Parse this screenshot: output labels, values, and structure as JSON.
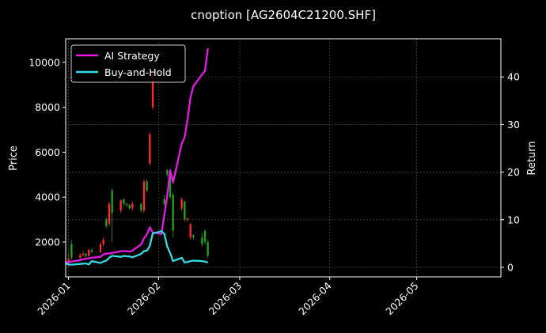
{
  "chart_data": {
    "type": "candlestick+line",
    "title": "cnoption [AG2604C21200.SHF]",
    "xlabel": "",
    "ylabel_left": "Price",
    "ylabel_right": "Return",
    "x_axis": {
      "range": [
        "2025-12-31",
        "2026-05-30"
      ],
      "ticks": [
        "2026-01",
        "2026-02",
        "2026-03",
        "2026-04",
        "2026-05"
      ]
    },
    "y_left": {
      "range": [
        450,
        11050
      ],
      "ticks": [
        2000,
        4000,
        6000,
        8000,
        10000
      ]
    },
    "y_right": {
      "range": [
        -2,
        48
      ],
      "ticks": [
        0,
        10,
        20,
        30,
        40
      ]
    },
    "grid": true,
    "legend_position": "top-left",
    "colors": {
      "background": "#000000",
      "up_candle": "#ff2a2a",
      "down_candle": "#1ea01e",
      "ai_strategy": "#e619e6",
      "buy_and_hold": "#33dde6",
      "grid": "#555555"
    },
    "candles": [
      {
        "date": "2026-01-01",
        "open": 1100,
        "high": 1500,
        "low": 900,
        "close": 1250
      },
      {
        "date": "2026-01-02",
        "open": 1900,
        "high": 2100,
        "low": 1200,
        "close": 1300
      },
      {
        "date": "2026-01-05",
        "open": 1300,
        "high": 1500,
        "low": 1150,
        "close": 1420
      },
      {
        "date": "2026-01-06",
        "open": 1420,
        "high": 1600,
        "low": 1350,
        "close": 1480
      },
      {
        "date": "2026-01-07",
        "open": 1480,
        "high": 1520,
        "low": 1300,
        "close": 1380
      },
      {
        "date": "2026-01-08",
        "open": 1380,
        "high": 1700,
        "low": 1350,
        "close": 1650
      },
      {
        "date": "2026-01-09",
        "open": 1650,
        "high": 1750,
        "low": 1500,
        "close": 1550
      },
      {
        "date": "2026-01-12",
        "open": 1550,
        "high": 2000,
        "low": 1500,
        "close": 1900
      },
      {
        "date": "2026-01-13",
        "open": 1900,
        "high": 2200,
        "low": 1800,
        "close": 2100
      },
      {
        "date": "2026-01-14",
        "open": 3000,
        "high": 3100,
        "low": 2600,
        "close": 2700
      },
      {
        "date": "2026-01-15",
        "open": 2800,
        "high": 3800,
        "low": 2700,
        "close": 3700
      },
      {
        "date": "2026-01-16",
        "open": 4300,
        "high": 4400,
        "low": 2000,
        "close": 3300
      },
      {
        "date": "2026-01-19",
        "open": 3400,
        "high": 3900,
        "low": 3300,
        "close": 3850
      },
      {
        "date": "2026-01-20",
        "open": 3900,
        "high": 3950,
        "low": 3600,
        "close": 3700
      },
      {
        "date": "2026-01-21",
        "open": 3700,
        "high": 3750,
        "low": 3550,
        "close": 3650
      },
      {
        "date": "2026-01-22",
        "open": 3650,
        "high": 3700,
        "low": 3450,
        "close": 3500
      },
      {
        "date": "2026-01-23",
        "open": 3500,
        "high": 3800,
        "low": 3400,
        "close": 3700
      },
      {
        "date": "2026-01-26",
        "open": 3700,
        "high": 3750,
        "low": 3300,
        "close": 3400
      },
      {
        "date": "2026-01-27",
        "open": 3400,
        "high": 4800,
        "low": 3300,
        "close": 4700
      },
      {
        "date": "2026-01-28",
        "open": 4700,
        "high": 4800,
        "low": 4200,
        "close": 4300
      },
      {
        "date": "2026-01-29",
        "open": 5500,
        "high": 6900,
        "low": 5400,
        "close": 6800
      },
      {
        "date": "2026-01-30",
        "open": 8000,
        "high": 9800,
        "low": 7900,
        "close": 9600
      },
      {
        "date": "2026-02-03",
        "open": 3900,
        "high": 4100,
        "low": 3600,
        "close": 3700
      },
      {
        "date": "2026-02-04",
        "open": 5200,
        "high": 5250,
        "low": 4900,
        "close": 5000
      },
      {
        "date": "2026-02-05",
        "open": 5000,
        "high": 5100,
        "low": 3900,
        "close": 4000
      },
      {
        "date": "2026-02-06",
        "open": 4100,
        "high": 4200,
        "low": 2200,
        "close": 2500
      },
      {
        "date": "2026-02-09",
        "open": 3500,
        "high": 4000,
        "low": 3400,
        "close": 3900
      },
      {
        "date": "2026-02-10",
        "open": 3800,
        "high": 3850,
        "low": 2900,
        "close": 3000
      },
      {
        "date": "2026-02-11",
        "open": 3000,
        "high": 3100,
        "low": 2900,
        "close": 3050
      },
      {
        "date": "2026-02-12",
        "open": 2200,
        "high": 2850,
        "low": 2100,
        "close": 2800
      },
      {
        "date": "2026-02-13",
        "open": 2300,
        "high": 2350,
        "low": 2100,
        "close": 2200
      },
      {
        "date": "2026-02-16",
        "open": 2200,
        "high": 2400,
        "low": 1800,
        "close": 1900
      },
      {
        "date": "2026-02-17",
        "open": 2500,
        "high": 2550,
        "low": 1900,
        "close": 2000
      },
      {
        "date": "2026-02-18",
        "open": 2000,
        "high": 2100,
        "low": 1300,
        "close": 1400
      }
    ],
    "series": [
      {
        "name": "AI Strategy",
        "axis": "right",
        "x": [
          "2025-12-31",
          "2026-01-01",
          "2026-01-02",
          "2026-01-05",
          "2026-01-06",
          "2026-01-07",
          "2026-01-08",
          "2026-01-09",
          "2026-01-12",
          "2026-01-13",
          "2026-01-14",
          "2026-01-15",
          "2026-01-16",
          "2026-01-19",
          "2026-01-20",
          "2026-01-21",
          "2026-01-22",
          "2026-01-23",
          "2026-01-26",
          "2026-01-27",
          "2026-01-28",
          "2026-01-29",
          "2026-01-30",
          "2026-02-02",
          "2026-02-03",
          "2026-02-04",
          "2026-02-05",
          "2026-02-06",
          "2026-02-09",
          "2026-02-10",
          "2026-02-11",
          "2026-02-12",
          "2026-02-13",
          "2026-02-16",
          "2026-02-17",
          "2026-02-18"
        ],
        "values": [
          1.0,
          1.1,
          1.2,
          1.5,
          1.7,
          1.8,
          1.9,
          2.0,
          2.2,
          2.7,
          2.9,
          2.9,
          3.0,
          3.4,
          3.4,
          3.4,
          3.3,
          3.5,
          4.8,
          6.1,
          6.9,
          8.4,
          7.3,
          7.0,
          11.0,
          15.0,
          20.4,
          17.8,
          26.0,
          27.3,
          31.0,
          35.7,
          38.0,
          40.5,
          41.2,
          46.0
        ]
      },
      {
        "name": "Buy-and-Hold",
        "axis": "right",
        "x": [
          "2025-12-31",
          "2026-01-01",
          "2026-01-02",
          "2026-01-05",
          "2026-01-06",
          "2026-01-07",
          "2026-01-08",
          "2026-01-09",
          "2026-01-12",
          "2026-01-13",
          "2026-01-14",
          "2026-01-15",
          "2026-01-16",
          "2026-01-19",
          "2026-01-20",
          "2026-01-21",
          "2026-01-22",
          "2026-01-23",
          "2026-01-26",
          "2026-01-27",
          "2026-01-28",
          "2026-01-29",
          "2026-01-30",
          "2026-02-02",
          "2026-02-03",
          "2026-02-04",
          "2026-02-05",
          "2026-02-06",
          "2026-02-09",
          "2026-02-10",
          "2026-02-11",
          "2026-02-12",
          "2026-02-13",
          "2026-02-16",
          "2026-02-17",
          "2026-02-18"
        ],
        "values": [
          0.8,
          0.6,
          0.55,
          0.7,
          0.75,
          0.8,
          0.6,
          1.3,
          0.9,
          1.2,
          1.4,
          2.0,
          2.4,
          2.2,
          2.4,
          2.3,
          2.3,
          2.1,
          2.8,
          3.4,
          3.5,
          4.5,
          7.1,
          7.6,
          7.0,
          4.4,
          3.0,
          1.3,
          2.0,
          1.0,
          1.1,
          1.3,
          1.4,
          1.3,
          1.2,
          1.0
        ]
      }
    ]
  }
}
